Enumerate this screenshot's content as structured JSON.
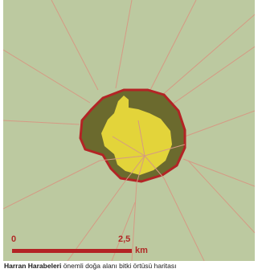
{
  "map": {
    "colors": {
      "background": "#bcc9a0",
      "roads": "#d59a84",
      "site_boundary": "#b32425",
      "outer_zone": "#6b6a2e",
      "inner_zone": "#e3d43a",
      "scale_bar": "#b32425"
    },
    "scale": {
      "start_label": "0",
      "mid_label": "2,5",
      "unit_label": "km"
    }
  },
  "caption": {
    "title": "Harran Harabeleri",
    "text": " önemli doğa alanı bitki örtüsü haritası"
  }
}
